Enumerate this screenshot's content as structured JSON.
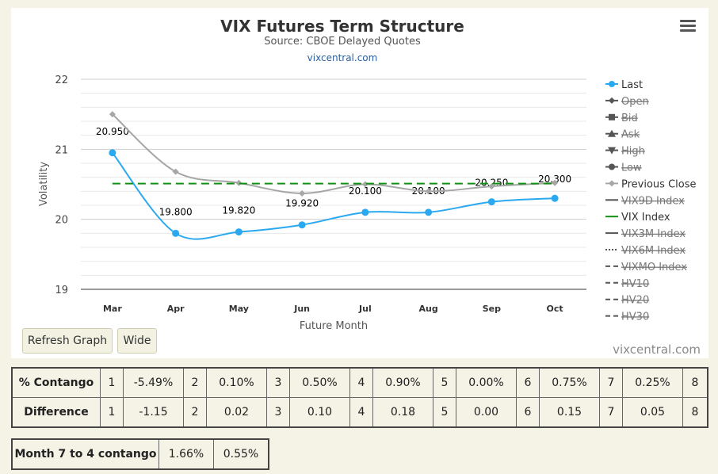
{
  "chart_data": {
    "type": "line",
    "title": "VIX Futures Term Structure",
    "subtitle": "Source: CBOE Delayed Quotes",
    "link_text": "vixcentral.com",
    "xlabel": "Future Month",
    "ylabel": "Volatility",
    "ylim": [
      19,
      22
    ],
    "yticks": [
      19,
      20,
      21,
      22
    ],
    "grid": true,
    "legend_position": "right",
    "categories": [
      "Mar",
      "Apr",
      "May",
      "Jun",
      "Jul",
      "Aug",
      "Sep",
      "Oct"
    ],
    "series": [
      {
        "name": "Last",
        "color": "#2aa9f0",
        "visible": true,
        "values": [
          20.95,
          19.8,
          19.82,
          19.92,
          20.1,
          20.1,
          20.25,
          20.3
        ],
        "labels": [
          "20.950",
          "19.800",
          "19.820",
          "19.920",
          "20.100",
          "20.100",
          "20.250",
          "20.300"
        ]
      },
      {
        "name": "Previous Close",
        "color": "#a6a6a6",
        "visible": true,
        "values": [
          21.5,
          20.68,
          20.52,
          20.37,
          20.5,
          20.4,
          20.47,
          20.52
        ]
      },
      {
        "name": "VIX Index",
        "color": "#109010",
        "visible": true,
        "dashed": true,
        "values": [
          20.51,
          20.51,
          20.51,
          20.51,
          20.51,
          20.51,
          20.51,
          20.51
        ]
      }
    ],
    "legend": [
      {
        "name": "Last",
        "visible": true,
        "symbol": "circle",
        "color": "#2aa9f0"
      },
      {
        "name": "Open",
        "visible": false,
        "symbol": "diamond",
        "color": "#555"
      },
      {
        "name": "Bid",
        "visible": false,
        "symbol": "square",
        "color": "#555"
      },
      {
        "name": "Ask",
        "visible": false,
        "symbol": "triangle",
        "color": "#555"
      },
      {
        "name": "High",
        "visible": false,
        "symbol": "triangle-down",
        "color": "#555"
      },
      {
        "name": "Low",
        "visible": false,
        "symbol": "circle",
        "color": "#555"
      },
      {
        "name": "Previous Close",
        "visible": true,
        "symbol": "diamond",
        "color": "#a6a6a6"
      },
      {
        "name": "VIX9D Index",
        "visible": false,
        "symbol": "line",
        "color": "#555"
      },
      {
        "name": "VIX Index",
        "visible": true,
        "symbol": "line",
        "color": "#109010"
      },
      {
        "name": "VIX3M Index",
        "visible": false,
        "symbol": "line",
        "color": "#555"
      },
      {
        "name": "VIX6M Index",
        "visible": false,
        "symbol": "dotted",
        "color": "#555"
      },
      {
        "name": "VIXMO Index",
        "visible": false,
        "symbol": "dash",
        "color": "#555"
      },
      {
        "name": "HV10",
        "visible": false,
        "symbol": "dash",
        "color": "#555"
      },
      {
        "name": "HV20",
        "visible": false,
        "symbol": "dash",
        "color": "#555"
      },
      {
        "name": "HV30",
        "visible": false,
        "symbol": "dash",
        "color": "#555"
      }
    ]
  },
  "buttons": {
    "refresh": "Refresh Graph",
    "wide": "Wide"
  },
  "watermark": "vixcentral.com",
  "contango_table": {
    "rows": [
      {
        "label": "% Contango",
        "cells": [
          [
            "1",
            "-5.49%"
          ],
          [
            "2",
            "0.10%"
          ],
          [
            "3",
            "0.50%"
          ],
          [
            "4",
            "0.90%"
          ],
          [
            "5",
            "0.00%"
          ],
          [
            "6",
            "0.75%"
          ],
          [
            "7",
            "0.25%"
          ]
        ],
        "last": "8"
      },
      {
        "label": "Difference",
        "cells": [
          [
            "1",
            "-1.15"
          ],
          [
            "2",
            "0.02"
          ],
          [
            "3",
            "0.10"
          ],
          [
            "4",
            "0.18"
          ],
          [
            "5",
            "0.00"
          ],
          [
            "6",
            "0.15"
          ],
          [
            "7",
            "0.05"
          ]
        ],
        "last": "8"
      }
    ]
  },
  "month_contango": {
    "label": "Month 7 to 4 contango",
    "value1": "1.66%",
    "value2": "0.55%"
  }
}
